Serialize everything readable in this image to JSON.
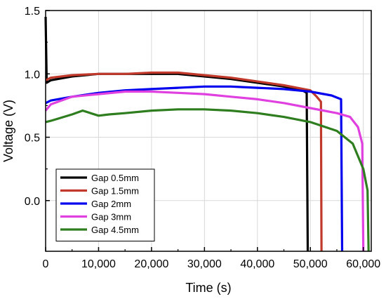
{
  "chart_data": {
    "type": "line",
    "xlabel": "Time (s)",
    "ylabel": "Voltage (V)",
    "xlim": [
      0,
      61500
    ],
    "ylim": [
      -0.4,
      1.5
    ],
    "x_ticks": [
      0,
      10000,
      20000,
      30000,
      40000,
      50000,
      60000
    ],
    "x_tick_labels": [
      "0",
      "10,000",
      "20,000",
      "30,000",
      "40,000",
      "50,000",
      "60,000"
    ],
    "y_ticks": [
      0.0,
      0.5,
      1.0,
      1.5
    ],
    "y_tick_labels": [
      "0.0",
      "0.5",
      "1.0",
      "1.5"
    ],
    "grid": true,
    "legend_position": "bottom-left",
    "series": [
      {
        "name": "Gap 0.5mm",
        "color": "#000000",
        "points": [
          [
            0,
            1.45
          ],
          [
            200,
            0.93
          ],
          [
            1000,
            0.95
          ],
          [
            5000,
            0.98
          ],
          [
            10000,
            1.0
          ],
          [
            15000,
            1.0
          ],
          [
            20000,
            1.0
          ],
          [
            25000,
            1.0
          ],
          [
            30000,
            0.98
          ],
          [
            35000,
            0.96
          ],
          [
            40000,
            0.93
          ],
          [
            45000,
            0.9
          ],
          [
            48500,
            0.87
          ],
          [
            49300,
            0.85
          ],
          [
            49500,
            -0.4
          ]
        ]
      },
      {
        "name": "Gap 1.5mm",
        "color": "#c0392b",
        "points": [
          [
            0,
            0.95
          ],
          [
            1000,
            0.97
          ],
          [
            5000,
            0.99
          ],
          [
            10000,
            1.0
          ],
          [
            15000,
            1.0
          ],
          [
            20000,
            1.01
          ],
          [
            25000,
            1.01
          ],
          [
            30000,
            0.99
          ],
          [
            35000,
            0.97
          ],
          [
            40000,
            0.94
          ],
          [
            45000,
            0.91
          ],
          [
            50000,
            0.87
          ],
          [
            51200,
            0.82
          ],
          [
            52000,
            0.78
          ],
          [
            52100,
            -0.4
          ]
        ]
      },
      {
        "name": "Gap 2mm",
        "color": "#0000ee",
        "points": [
          [
            0,
            0.77
          ],
          [
            1000,
            0.79
          ],
          [
            5000,
            0.82
          ],
          [
            10000,
            0.85
          ],
          [
            15000,
            0.87
          ],
          [
            20000,
            0.88
          ],
          [
            25000,
            0.89
          ],
          [
            30000,
            0.9
          ],
          [
            35000,
            0.9
          ],
          [
            40000,
            0.89
          ],
          [
            45000,
            0.88
          ],
          [
            50000,
            0.86
          ],
          [
            54000,
            0.83
          ],
          [
            55800,
            0.8
          ],
          [
            56000,
            -0.4
          ]
        ]
      },
      {
        "name": "Gap 3mm",
        "color": "#e040e0",
        "points": [
          [
            0,
            0.71
          ],
          [
            1000,
            0.76
          ],
          [
            5000,
            0.82
          ],
          [
            10000,
            0.84
          ],
          [
            15000,
            0.86
          ],
          [
            20000,
            0.86
          ],
          [
            25000,
            0.85
          ],
          [
            30000,
            0.84
          ],
          [
            35000,
            0.82
          ],
          [
            40000,
            0.8
          ],
          [
            45000,
            0.77
          ],
          [
            50000,
            0.73
          ],
          [
            55000,
            0.69
          ],
          [
            57500,
            0.66
          ],
          [
            59000,
            0.58
          ],
          [
            59800,
            0.45
          ],
          [
            60000,
            -0.4
          ]
        ]
      },
      {
        "name": "Gap 4.5mm",
        "color": "#2e7d1e",
        "points": [
          [
            0,
            0.62
          ],
          [
            1000,
            0.63
          ],
          [
            5000,
            0.68
          ],
          [
            7000,
            0.71
          ],
          [
            10000,
            0.67
          ],
          [
            12000,
            0.68
          ],
          [
            15000,
            0.69
          ],
          [
            20000,
            0.71
          ],
          [
            25000,
            0.72
          ],
          [
            30000,
            0.72
          ],
          [
            35000,
            0.71
          ],
          [
            40000,
            0.69
          ],
          [
            45000,
            0.66
          ],
          [
            50000,
            0.62
          ],
          [
            55000,
            0.55
          ],
          [
            58000,
            0.45
          ],
          [
            60000,
            0.25
          ],
          [
            60800,
            0.08
          ],
          [
            61000,
            -0.4
          ]
        ]
      }
    ]
  }
}
